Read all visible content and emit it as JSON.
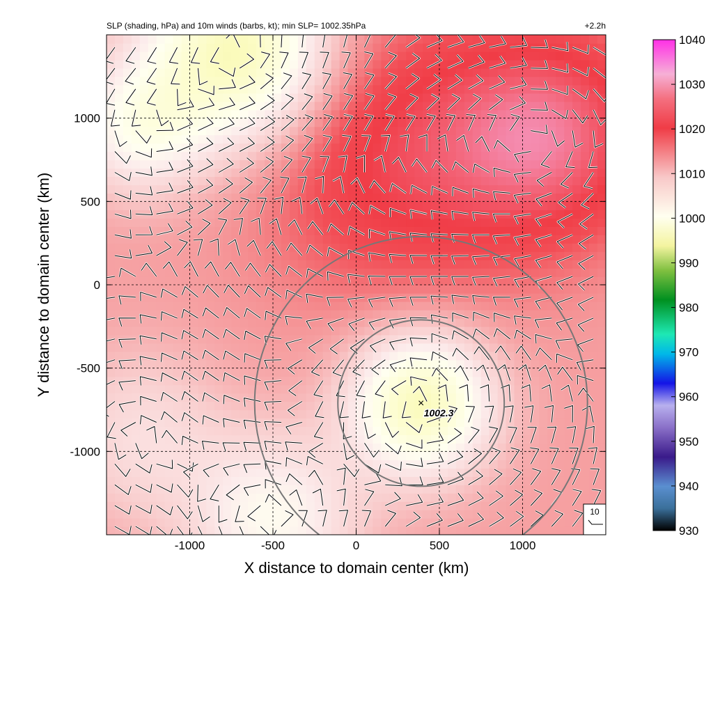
{
  "chart_data": {
    "type": "heatmap",
    "title": "SLP (shading, hPa) and 10m winds (barbs, kt); min SLP= 1002.35hPa",
    "time_label": "+2.2h",
    "xlabel": "X distance to domain center (km)",
    "ylabel": "Y distance to domain center (km)",
    "xlim": [
      -1500,
      1500
    ],
    "ylim": [
      -1500,
      1500
    ],
    "x_ticks": [
      -1000,
      -500,
      0,
      500,
      1000
    ],
    "y_ticks": [
      -1000,
      -500,
      0,
      500,
      1000
    ],
    "x_tick_labels": [
      "-1000",
      "-500",
      "0",
      "500",
      "1000"
    ],
    "y_tick_labels": [
      "-1000",
      "-500",
      "0",
      "500",
      "1000"
    ],
    "grid": true,
    "colorbar": {
      "range": [
        930,
        1040
      ],
      "ticks": [
        930,
        940,
        950,
        960,
        970,
        980,
        990,
        1000,
        1010,
        1020,
        1030,
        1040
      ],
      "tick_labels": [
        "930",
        "940",
        "950",
        "960",
        "970",
        "980",
        "990",
        "1000",
        "1010",
        "1020",
        "1030",
        "1040"
      ]
    },
    "minimum": {
      "x": 390,
      "y": -710,
      "label": "1002.3",
      "value": 1002.35
    },
    "circles_km": [
      500,
      1000
    ],
    "barb_reference": {
      "label": "10",
      "speed_kt": 10
    },
    "pressure_field": {
      "background": 1015.5,
      "features": [
        {
          "kind": "low",
          "x": 390,
          "y": -710,
          "amplitude": -12.5,
          "radius": 420
        },
        {
          "kind": "high",
          "x": 1150,
          "y": 900,
          "amplitude": 9,
          "radius": 600
        },
        {
          "kind": "high",
          "x": 250,
          "y": 750,
          "amplitude": 6,
          "radius": 800
        },
        {
          "kind": "low",
          "x": -700,
          "y": 1400,
          "amplitude": -13,
          "radius": 550
        },
        {
          "kind": "low",
          "x": -1300,
          "y": 950,
          "amplitude": -7,
          "radius": 400
        },
        {
          "kind": "low",
          "x": -500,
          "y": -1400,
          "amplitude": -7,
          "radius": 500
        },
        {
          "kind": "low",
          "x": -1300,
          "y": -900,
          "amplitude": -4,
          "radius": 500
        }
      ]
    }
  }
}
